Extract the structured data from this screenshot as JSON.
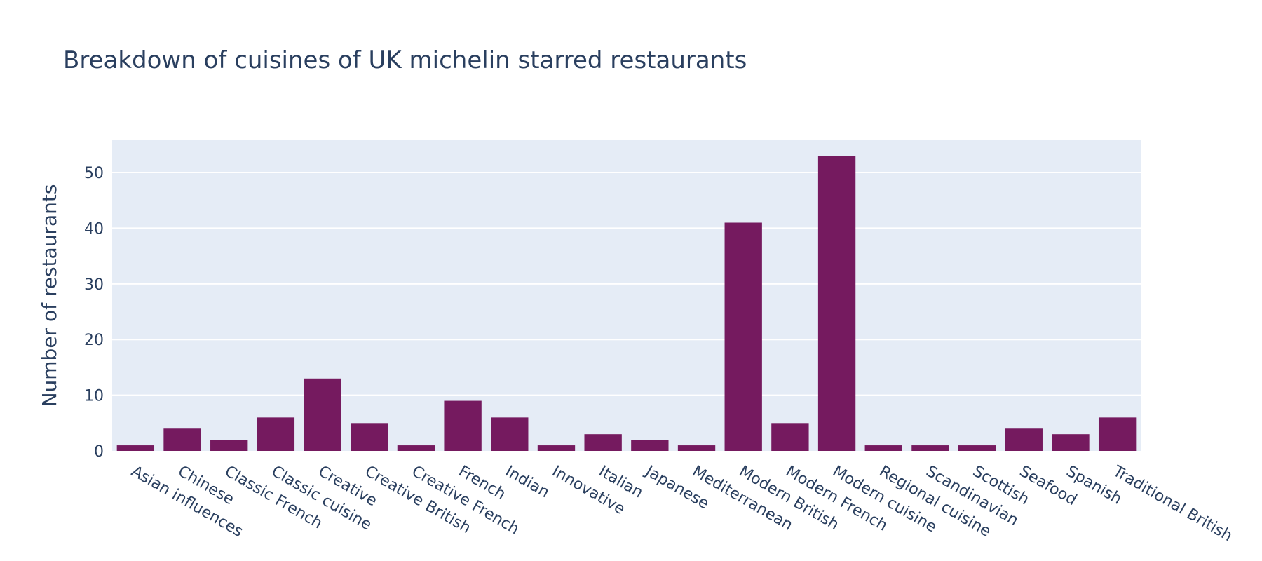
{
  "chart_data": {
    "type": "bar",
    "title": "Breakdown of cuisines of UK michelin starred restaurants",
    "xlabel": "",
    "ylabel": "Number of restaurants",
    "categories": [
      "Asian influences",
      "Chinese",
      "Classic French",
      "Classic cuisine",
      "Creative",
      "Creative British",
      "Creative French",
      "French",
      "Indian",
      "Innovative",
      "Italian",
      "Japanese",
      "Mediterranean",
      "Modern British",
      "Modern French",
      "Modern cuisine",
      "Regional cuisine",
      "Scandinavian",
      "Scottish",
      "Seafood",
      "Spanish",
      "Traditional British"
    ],
    "values": [
      1,
      4,
      2,
      6,
      13,
      5,
      1,
      9,
      6,
      1,
      3,
      2,
      1,
      41,
      5,
      53,
      1,
      1,
      1,
      4,
      3,
      6
    ],
    "ylim": [
      0,
      55.8
    ],
    "yticks": [
      0,
      10,
      20,
      30,
      40,
      50
    ],
    "grid": true,
    "legend": "none",
    "colors": {
      "bar": "#751a5f",
      "plot_bg": "#e5ecf6",
      "grid": "#ffffff",
      "text": "#2a3f5f"
    }
  }
}
